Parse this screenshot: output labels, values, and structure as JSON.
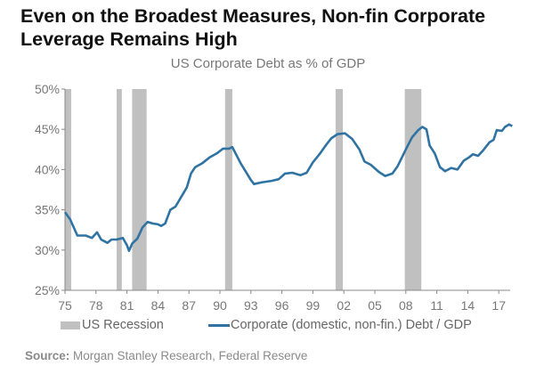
{
  "title": "Even on the Broadest Measures, Non-fin Corporate Leverage Remains High",
  "colors": {
    "line": "#2f73a3",
    "recession": "#c0c0c0",
    "axis": "#888888",
    "text": "#777777"
  },
  "legend": {
    "recession_label": "US Recession",
    "series_label": "Corporate (domestic, non-fin.) Debt / GDP"
  },
  "source": {
    "prefix": "Source:",
    "text": "Morgan Stanley Research, Federal Reserve"
  },
  "chart_data": {
    "type": "line",
    "title": "US Corporate Debt as % of GDP",
    "xlabel": "",
    "ylabel": "",
    "xlim": [
      1975,
      2018.6
    ],
    "ylim": [
      25,
      50
    ],
    "grid": false,
    "legend_position": "bottom",
    "x_ticks": [
      1975,
      1978,
      1981,
      1984,
      1987,
      1990,
      1993,
      1996,
      1999,
      2002,
      2005,
      2008,
      2011,
      2014,
      2017
    ],
    "x_tick_labels": [
      "75",
      "78",
      "81",
      "84",
      "87",
      "90",
      "93",
      "96",
      "99",
      "02",
      "05",
      "08",
      "11",
      "14",
      "17"
    ],
    "y_ticks": [
      25,
      30,
      35,
      40,
      45,
      50
    ],
    "y_tick_labels": [
      "25%",
      "30%",
      "35%",
      "40%",
      "45%",
      "50%"
    ],
    "recessions": [
      {
        "start": 1975.0,
        "end": 1975.6
      },
      {
        "start": 1980.0,
        "end": 1980.5
      },
      {
        "start": 1981.5,
        "end": 1982.9
      },
      {
        "start": 1990.5,
        "end": 1991.2
      },
      {
        "start": 2001.2,
        "end": 2001.9
      },
      {
        "start": 2007.9,
        "end": 2009.5
      }
    ],
    "series": [
      {
        "name": "Corporate (domestic, non-fin.) Debt / GDP",
        "x": [
          1975.0,
          1975.5,
          1976.2,
          1977.0,
          1977.6,
          1978.1,
          1978.5,
          1979.1,
          1979.5,
          1980.0,
          1980.6,
          1981.0,
          1981.2,
          1981.5,
          1982.0,
          1982.5,
          1983.0,
          1983.5,
          1984.0,
          1984.3,
          1984.7,
          1985.2,
          1985.7,
          1986.3,
          1986.8,
          1987.2,
          1987.6,
          1988.3,
          1989.0,
          1989.7,
          1990.3,
          1990.9,
          1991.2,
          1992.0,
          1993.0,
          1993.3,
          1994.0,
          1995.0,
          1995.7,
          1996.3,
          1997.0,
          1997.8,
          1998.4,
          1999.0,
          1999.7,
          2000.3,
          2000.8,
          2001.4,
          2002.1,
          2002.8,
          2003.5,
          2004.0,
          2004.6,
          2005.4,
          2006.0,
          2006.7,
          2007.2,
          2008.0,
          2008.6,
          2009.2,
          2009.6,
          2010.0,
          2010.3,
          2010.8,
          2011.3,
          2011.8,
          2012.4,
          2013.0,
          2013.6,
          2014.1,
          2014.5,
          2015.0,
          2015.5,
          2016.1,
          2016.5,
          2016.8,
          2017.3,
          2017.6,
          2018.0,
          2018.3
        ],
        "values": [
          34.7,
          33.8,
          31.8,
          31.8,
          31.5,
          32.2,
          31.3,
          30.9,
          31.3,
          31.3,
          31.5,
          30.6,
          29.9,
          30.8,
          31.4,
          32.8,
          33.5,
          33.3,
          33.2,
          33.0,
          33.3,
          35.0,
          35.4,
          36.7,
          37.8,
          39.5,
          40.3,
          40.8,
          41.5,
          42.0,
          42.6,
          42.6,
          42.8,
          40.8,
          38.7,
          38.2,
          38.4,
          38.6,
          38.8,
          39.5,
          39.6,
          39.3,
          39.6,
          40.9,
          42.0,
          43.1,
          43.9,
          44.4,
          44.5,
          43.8,
          42.5,
          41.0,
          40.6,
          39.7,
          39.2,
          39.5,
          40.4,
          42.5,
          44.0,
          44.9,
          45.3,
          45.0,
          43.0,
          42.0,
          40.3,
          39.8,
          40.2,
          40.0,
          41.1,
          41.5,
          41.9,
          41.7,
          42.4,
          43.4,
          43.7,
          44.9,
          44.8,
          45.3,
          45.6,
          45.4
        ]
      }
    ]
  }
}
